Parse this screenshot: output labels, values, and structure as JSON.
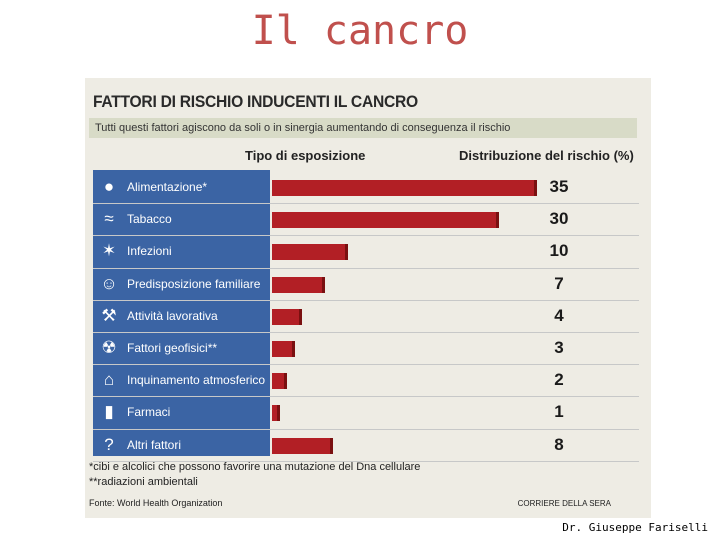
{
  "slide": {
    "title": "Il cancro",
    "footer": "Dr. Giuseppe Fariselli"
  },
  "clipping": {
    "title": "FATTORI DI RISCHIO INDUCENTI IL CANCRO",
    "subtitle": "Tutti questi fattori agiscono da soli o in sinergia aumentando di conseguenza il rischio",
    "col_exposure": "Tipo di esposizione",
    "col_distribution": "Distribuzione del rischio (%)",
    "note1": "*cibi e alcolici che possono favorire una mutazione del Dna cellulare",
    "note2": "**radiazioni ambientali",
    "source": "Fonte: World Health Organization",
    "credit": "CORRIERE DELLA SERA",
    "icons": [
      "plate-icon",
      "cigarette-icon",
      "virus-icon",
      "family-icon",
      "worker-icon",
      "radiation-icon",
      "factory-icon",
      "medicine-bottle-icon",
      "question-mark-icon"
    ]
  },
  "chart_data": {
    "type": "bar",
    "orientation": "horizontal",
    "title": "FATTORI DI RISCHIO INDUCENTI IL CANCRO",
    "xlabel": "Distribuzione del rischio (%)",
    "ylabel": "Tipo di esposizione",
    "categories": [
      "Alimentazione*",
      "Tabacco",
      "Infezioni",
      "Predisposizione familiare",
      "Attività lavorativa",
      "Fattori geofisici**",
      "Inquinamento atmosferico",
      "Farmaci",
      "Altri fattori"
    ],
    "values": [
      35,
      30,
      10,
      7,
      4,
      3,
      2,
      1,
      8
    ],
    "xlim": [
      0,
      35
    ],
    "bar_color": "#b21f25",
    "label_background": "#3b64a4"
  }
}
